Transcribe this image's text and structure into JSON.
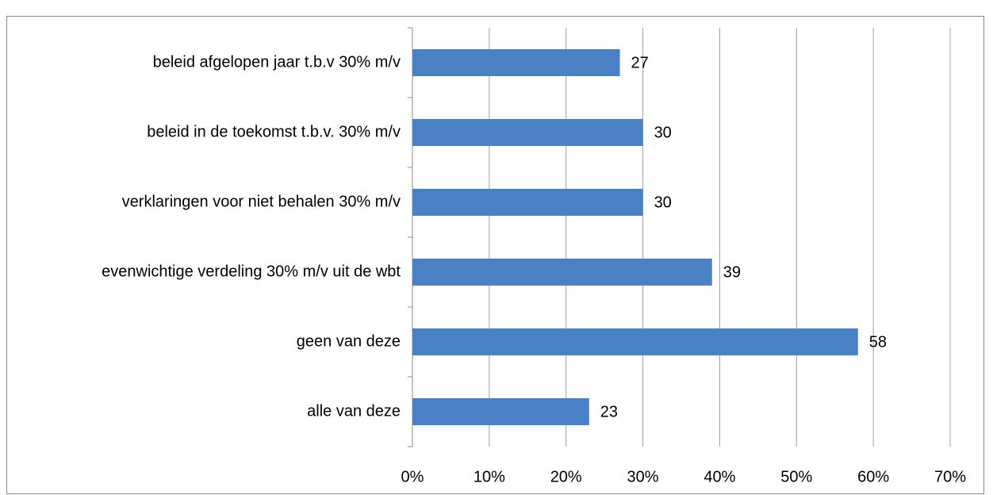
{
  "chart_data": {
    "type": "bar",
    "orientation": "horizontal",
    "categories": [
      "beleid afgelopen jaar t.b.v 30% m/v",
      "beleid in de toekomst t.b.v. 30% m/v",
      "verklaringen voor niet behalen 30% m/v",
      "evenwichtige verdeling 30% m/v uit de wbt",
      "geen van deze",
      "alle van deze"
    ],
    "values": [
      27,
      30,
      30,
      39,
      58,
      23
    ],
    "color": "#4a81c4",
    "xlim": [
      0,
      70
    ],
    "xticks": [
      {
        "value": 0,
        "label": "0%"
      },
      {
        "value": 10,
        "label": "10%"
      },
      {
        "value": 20,
        "label": "20%"
      },
      {
        "value": 30,
        "label": "30%"
      },
      {
        "value": 40,
        "label": "40%"
      },
      {
        "value": 50,
        "label": "50%"
      },
      {
        "value": 60,
        "label": "60%"
      },
      {
        "value": 70,
        "label": "70%"
      }
    ],
    "grid": true
  }
}
